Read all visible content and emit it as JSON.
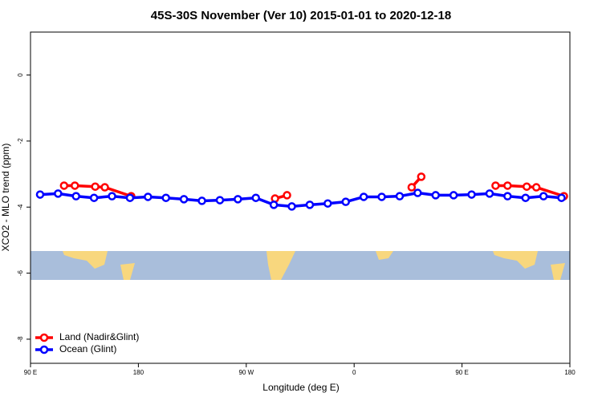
{
  "chart_data": {
    "type": "line",
    "title": "45S-30S November (Ver 10)   2015-01-01 to 2020-12-18",
    "x_label": "Longitude (deg E)",
    "y_label": "XCO2 - MLO trend (ppm)",
    "xlim": [
      90,
      540
    ],
    "ylim": [
      -8.73,
      1.3
    ],
    "xticks": [
      {
        "value": 90,
        "label": "90 E"
      },
      180,
      {
        "value": 270,
        "label": "90 W"
      },
      {
        "value": 360,
        "label": "0"
      },
      {
        "value": 450,
        "label": "90 E"
      },
      {
        "value": 540,
        "label": "180"
      }
    ],
    "yticks": [
      0,
      -2,
      -4,
      -6,
      -8
    ],
    "legend": "bottom-left",
    "series": [
      {
        "name": "Land (Nadir&Glint)",
        "color": "#ff0000",
        "x": [
          118,
          127,
          144,
          152,
          174,
          null,
          294,
          304,
          null,
          408,
          416,
          null,
          478,
          488,
          504,
          512,
          535
        ],
        "values": [
          -3.35,
          -3.35,
          -3.38,
          -3.4,
          -3.67,
          null,
          -3.74,
          -3.64,
          null,
          -3.4,
          -3.08,
          null,
          -3.35,
          -3.35,
          -3.38,
          -3.4,
          -3.67
        ]
      },
      {
        "name": "Ocean (Glint)",
        "color": "#0000ff",
        "x": [
          98,
          113,
          128,
          143,
          158,
          173,
          188,
          203,
          218,
          233,
          248,
          263,
          278,
          293,
          308,
          323,
          338,
          353,
          368,
          383,
          398,
          413,
          428,
          443,
          458,
          473,
          488,
          503,
          518,
          533
        ],
        "values": [
          -3.62,
          -3.59,
          -3.67,
          -3.72,
          -3.67,
          -3.72,
          -3.69,
          -3.72,
          -3.76,
          -3.81,
          -3.79,
          -3.76,
          -3.72,
          -3.93,
          -3.98,
          -3.93,
          -3.89,
          -3.84,
          -3.69,
          -3.69,
          -3.67,
          -3.57,
          -3.64,
          -3.64,
          -3.62,
          -3.59,
          -3.67,
          -3.72,
          -3.67,
          -3.72
        ]
      }
    ]
  }
}
